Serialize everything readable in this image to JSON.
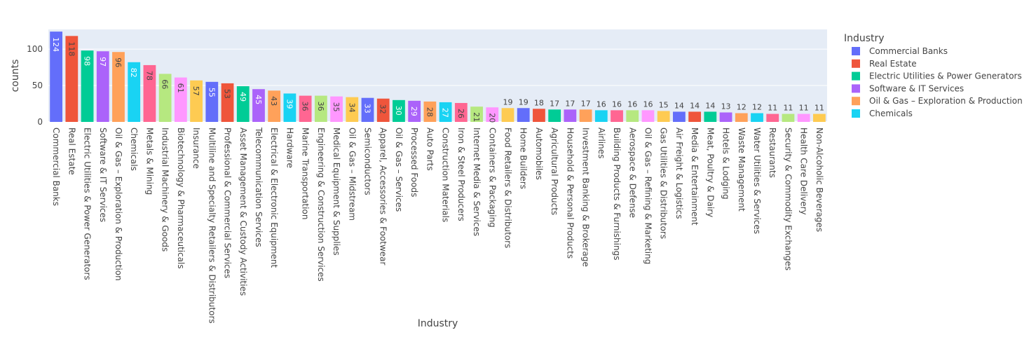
{
  "chart_data": {
    "type": "bar",
    "xlabel": "Industry",
    "ylabel": "counts",
    "ylim": [
      0,
      127
    ],
    "yticks": [
      0,
      50,
      100
    ],
    "grid": true,
    "legend": {
      "title": "Industry",
      "placement": "top-right",
      "entries": [
        "Commercial Banks",
        "Real Estate",
        "Electric Utilities & Power Generators",
        "Software & IT Services",
        "Oil & Gas – Exploration & Production",
        "Chemicals"
      ]
    },
    "categories": [
      "Commercial Banks",
      "Real Estate",
      "Electric Utilities & Power Generators",
      "Software & IT Services",
      "Oil & Gas – Exploration & Production",
      "Chemicals",
      "Metals & Mining",
      "Industrial Machinery & Goods",
      "Biotechnology & Pharmaceuticals",
      "Insurance",
      "Multiline and Specialty Retailers & Distributors",
      "Professional & Commercial Services",
      "Asset Management & Custody Activities",
      "Telecommunication Services",
      "Electrical & Electronic Equipment",
      "Hardware",
      "Marine Transportation",
      "Engineering & Construction Services",
      "Medical Equipment & Supplies",
      "Oil & Gas – Midstream",
      "Semiconductors",
      "Apparel, Accessories & Footwear",
      "Oil & Gas – Services",
      "Processed Foods",
      "Auto Parts",
      "Construction Materials",
      "Iron & Steel Producers",
      "Internet Media & Services",
      "Containers & Packaging",
      "Food Retailers & Distributors",
      "Home Builders",
      "Automobiles",
      "Agricultural Products",
      "Household & Personal Products",
      "Investment Banking & Brokerage",
      "Airlines",
      "Building Products & Furnishings",
      "Aerospace & Defense",
      "Oil & Gas – Refining & Marketing",
      "Gas Utilities & Distributors",
      "Air Freight & Logistics",
      "Media & Entertainment",
      "Meat, Poultry & Dairy",
      "Hotels & Lodging",
      "Waste Management",
      "Water Utilities & Services",
      "Restaurants",
      "Security & Commodity Exchanges",
      "Health Care Delivery",
      "Non-Alcoholic Beverages"
    ],
    "values": [
      124,
      118,
      98,
      97,
      96,
      82,
      78,
      66,
      61,
      57,
      55,
      53,
      49,
      45,
      43,
      39,
      36,
      36,
      35,
      34,
      33,
      32,
      30,
      29,
      28,
      27,
      26,
      21,
      20,
      19,
      19,
      18,
      17,
      17,
      17,
      16,
      16,
      16,
      16,
      15,
      14,
      14,
      14,
      13,
      12,
      12,
      11,
      11,
      11,
      11
    ],
    "labels": [
      "124",
      "118",
      "98",
      "97",
      "96",
      "82",
      "78",
      "66",
      "61",
      "57",
      "55",
      "53",
      "49",
      "45",
      "43",
      "39",
      "36",
      "36",
      "35",
      "34",
      "33",
      "32",
      "30",
      "29",
      "28",
      "27",
      "26",
      "21",
      "20",
      "19",
      "19",
      "18",
      "17",
      "17",
      "17",
      "16",
      "16",
      "16",
      "16",
      "15",
      "14",
      "14",
      "14",
      "13",
      "12",
      "12",
      "11",
      "11",
      "11",
      "11"
    ],
    "colors": [
      "#636efa",
      "#EF553B",
      "#00cc96",
      "#ab63fa",
      "#FFA15A",
      "#19d3f3",
      "#FF6692",
      "#B6E880",
      "#FF97FF",
      "#FECB52"
    ]
  }
}
